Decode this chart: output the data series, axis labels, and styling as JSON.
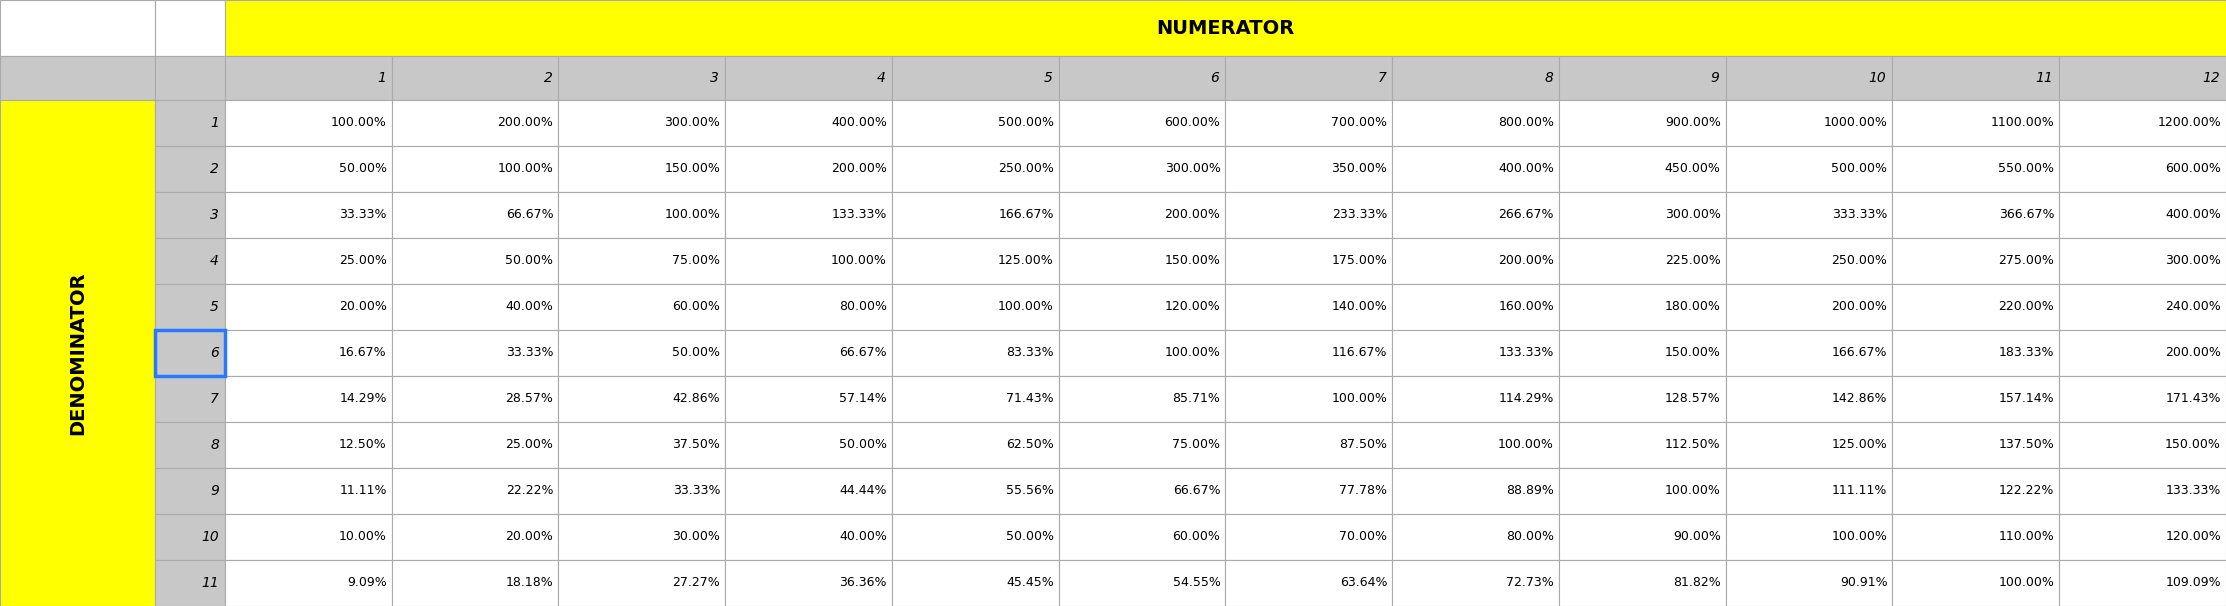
{
  "title_numerator": "NUMERATOR",
  "title_denominator": "DENOMINATOR",
  "col_headers": [
    "1",
    "2",
    "3",
    "4",
    "5",
    "6",
    "7",
    "8",
    "9",
    "10",
    "11",
    "12"
  ],
  "row_headers": [
    "1",
    "2",
    "3",
    "4",
    "5",
    "6",
    "7",
    "8",
    "9",
    "10",
    "11"
  ],
  "values": [
    [
      "100.00%",
      "200.00%",
      "300.00%",
      "400.00%",
      "500.00%",
      "600.00%",
      "700.00%",
      "800.00%",
      "900.00%",
      "1000.00%",
      "1100.00%",
      "1200.00%"
    ],
    [
      "50.00%",
      "100.00%",
      "150.00%",
      "200.00%",
      "250.00%",
      "300.00%",
      "350.00%",
      "400.00%",
      "450.00%",
      "500.00%",
      "550.00%",
      "600.00%"
    ],
    [
      "33.33%",
      "66.67%",
      "100.00%",
      "133.33%",
      "166.67%",
      "200.00%",
      "233.33%",
      "266.67%",
      "300.00%",
      "333.33%",
      "366.67%",
      "400.00%"
    ],
    [
      "25.00%",
      "50.00%",
      "75.00%",
      "100.00%",
      "125.00%",
      "150.00%",
      "175.00%",
      "200.00%",
      "225.00%",
      "250.00%",
      "275.00%",
      "300.00%"
    ],
    [
      "20.00%",
      "40.00%",
      "60.00%",
      "80.00%",
      "100.00%",
      "120.00%",
      "140.00%",
      "160.00%",
      "180.00%",
      "200.00%",
      "220.00%",
      "240.00%"
    ],
    [
      "16.67%",
      "33.33%",
      "50.00%",
      "66.67%",
      "83.33%",
      "100.00%",
      "116.67%",
      "133.33%",
      "150.00%",
      "166.67%",
      "183.33%",
      "200.00%"
    ],
    [
      "14.29%",
      "28.57%",
      "42.86%",
      "57.14%",
      "71.43%",
      "85.71%",
      "100.00%",
      "114.29%",
      "128.57%",
      "142.86%",
      "157.14%",
      "171.43%"
    ],
    [
      "12.50%",
      "25.00%",
      "37.50%",
      "50.00%",
      "62.50%",
      "75.00%",
      "87.50%",
      "100.00%",
      "112.50%",
      "125.00%",
      "137.50%",
      "150.00%"
    ],
    [
      "11.11%",
      "22.22%",
      "33.33%",
      "44.44%",
      "55.56%",
      "66.67%",
      "77.78%",
      "88.89%",
      "100.00%",
      "111.11%",
      "122.22%",
      "133.33%"
    ],
    [
      "10.00%",
      "20.00%",
      "30.00%",
      "40.00%",
      "50.00%",
      "60.00%",
      "70.00%",
      "80.00%",
      "90.00%",
      "100.00%",
      "110.00%",
      "120.00%"
    ],
    [
      "9.09%",
      "18.18%",
      "27.27%",
      "36.36%",
      "45.45%",
      "54.55%",
      "63.64%",
      "72.73%",
      "81.82%",
      "90.91%",
      "100.00%",
      "109.09%"
    ]
  ],
  "yellow": "#FFFF00",
  "light_gray": "#C8C8C8",
  "white": "#FFFFFF",
  "blue_border_row": 5,
  "text_color": "#000000",
  "grid_color": "#AAAAAA",
  "fig_width": 22.26,
  "fig_height": 6.06,
  "dpi": 100
}
